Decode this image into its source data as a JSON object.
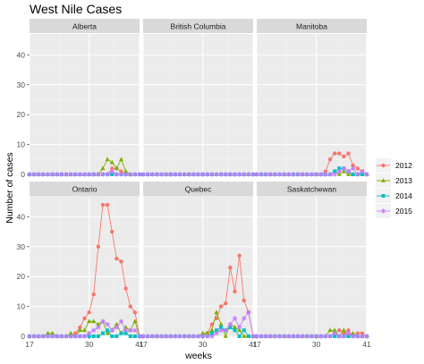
{
  "chart_data": {
    "type": "line",
    "title": "West Nile Cases",
    "xlabel": "weeks",
    "ylabel": "Number of cases",
    "xlim": [
      17,
      41
    ],
    "ylim": [
      0,
      44
    ],
    "x_ticks": [
      17,
      30,
      41
    ],
    "y_ticks": [
      0,
      10,
      20,
      30,
      40
    ],
    "legend": {
      "position": "right",
      "title": ""
    },
    "facet_order": [
      "Alberta",
      "British Columbia",
      "Manitoba",
      "Ontario",
      "Quebec",
      "Saskatchewan"
    ],
    "series_styles": [
      {
        "name": "2012",
        "color": "#F8766D",
        "marker": "circle"
      },
      {
        "name": "2013",
        "color": "#7CAE00",
        "marker": "triangle"
      },
      {
        "name": "2014",
        "color": "#00BFC4",
        "marker": "square"
      },
      {
        "name": "2015",
        "color": "#C77CFF",
        "marker": "star"
      }
    ],
    "weeks": [
      17,
      18,
      19,
      20,
      21,
      22,
      23,
      24,
      25,
      26,
      27,
      28,
      29,
      30,
      31,
      32,
      33,
      34,
      35,
      36,
      37,
      38,
      39,
      40,
      41
    ],
    "facets": [
      {
        "name": "Alberta",
        "series": {
          "2012": [
            0,
            0,
            0,
            0,
            0,
            0,
            0,
            0,
            0,
            0,
            0,
            0,
            0,
            0,
            0,
            0,
            0,
            0,
            2,
            2,
            1,
            0,
            0,
            0,
            0
          ],
          "2013": [
            0,
            0,
            0,
            0,
            0,
            0,
            0,
            0,
            0,
            0,
            0,
            0,
            0,
            0,
            0,
            0,
            2,
            5,
            4,
            2,
            5,
            1,
            0,
            0,
            0
          ],
          "2014": [
            0,
            0,
            0,
            0,
            0,
            0,
            0,
            0,
            0,
            0,
            0,
            0,
            0,
            0,
            0,
            0,
            0,
            0,
            0,
            0,
            0,
            0,
            0,
            0,
            0
          ],
          "2015": [
            0,
            0,
            0,
            0,
            0,
            0,
            0,
            0,
            0,
            0,
            0,
            0,
            0,
            0,
            0,
            0,
            0,
            0,
            1,
            0,
            0,
            0,
            0,
            0,
            0
          ]
        }
      },
      {
        "name": "British Columbia",
        "series": {
          "2012": [
            0,
            0,
            0,
            0,
            0,
            0,
            0,
            0,
            0,
            0,
            0,
            0,
            0,
            0,
            0,
            0,
            0,
            0,
            0,
            0,
            0,
            0,
            0,
            0,
            0
          ],
          "2013": [
            0,
            0,
            0,
            0,
            0,
            0,
            0,
            0,
            0,
            0,
            0,
            0,
            0,
            0,
            0,
            0,
            0,
            0,
            0,
            0,
            0,
            0,
            0,
            0,
            0
          ],
          "2014": [
            0,
            0,
            0,
            0,
            0,
            0,
            0,
            0,
            0,
            0,
            0,
            0,
            0,
            0,
            0,
            0,
            0,
            0,
            0,
            0,
            0,
            0,
            0,
            0,
            0
          ],
          "2015": [
            0,
            0,
            0,
            0,
            0,
            0,
            0,
            0,
            0,
            0,
            0,
            0,
            0,
            0,
            0,
            0,
            0,
            0,
            0,
            0,
            0,
            0,
            0,
            0,
            0
          ]
        }
      },
      {
        "name": "Manitoba",
        "series": {
          "2012": [
            0,
            0,
            0,
            0,
            0,
            0,
            0,
            0,
            0,
            0,
            0,
            0,
            0,
            0,
            0,
            1,
            5,
            7,
            7,
            6,
            7,
            3,
            2,
            1,
            0
          ],
          "2013": [
            0,
            0,
            0,
            0,
            0,
            0,
            0,
            0,
            0,
            0,
            0,
            0,
            0,
            0,
            0,
            0,
            0,
            1,
            0,
            1,
            0,
            0,
            0,
            0,
            0
          ],
          "2014": [
            0,
            0,
            0,
            0,
            0,
            0,
            0,
            0,
            0,
            0,
            0,
            0,
            0,
            0,
            0,
            0,
            0,
            1,
            2,
            2,
            1,
            0,
            0,
            0,
            0
          ],
          "2015": [
            0,
            0,
            0,
            0,
            0,
            0,
            0,
            0,
            0,
            0,
            0,
            0,
            0,
            0,
            0,
            0,
            0,
            0,
            1,
            2,
            1,
            2,
            0,
            1,
            0
          ]
        }
      },
      {
        "name": "Ontario",
        "series": {
          "2012": [
            0,
            0,
            0,
            0,
            0,
            0,
            0,
            0,
            0,
            0,
            1,
            3,
            6,
            8,
            14,
            30,
            44,
            44,
            35,
            26,
            25,
            16,
            10,
            8,
            0
          ],
          "2013": [
            0,
            0,
            0,
            0,
            1,
            1,
            0,
            0,
            0,
            1,
            0,
            2,
            2,
            5,
            5,
            4,
            5,
            1,
            2,
            4,
            1,
            3,
            2,
            5,
            0
          ],
          "2014": [
            0,
            0,
            0,
            0,
            0,
            0,
            0,
            0,
            0,
            0,
            0,
            0,
            0,
            0,
            0,
            0,
            1,
            2,
            0,
            0,
            1,
            1,
            0,
            0,
            0
          ],
          "2015": [
            0,
            0,
            0,
            0,
            0,
            0,
            0,
            0,
            0,
            0,
            0,
            0,
            0,
            1,
            2,
            3,
            5,
            4,
            2,
            3,
            5,
            2,
            2,
            2,
            0
          ]
        }
      },
      {
        "name": "Quebec",
        "series": {
          "2012": [
            0,
            0,
            0,
            0,
            0,
            0,
            0,
            0,
            0,
            0,
            0,
            0,
            0,
            0,
            1,
            4,
            6,
            10,
            11,
            23,
            15,
            27,
            12,
            8,
            0
          ],
          "2013": [
            0,
            0,
            0,
            0,
            0,
            0,
            0,
            0,
            0,
            0,
            0,
            0,
            0,
            1,
            1,
            2,
            8,
            4,
            0,
            4,
            3,
            2,
            0,
            0,
            0
          ],
          "2014": [
            0,
            0,
            0,
            0,
            0,
            0,
            0,
            0,
            0,
            0,
            0,
            0,
            0,
            0,
            0,
            1,
            2,
            3,
            2,
            3,
            2,
            0,
            2,
            0,
            0
          ],
          "2015": [
            0,
            0,
            0,
            0,
            0,
            0,
            0,
            0,
            0,
            0,
            0,
            0,
            0,
            0,
            0,
            0,
            1,
            2,
            2,
            4,
            6,
            3,
            6,
            8,
            0
          ]
        }
      },
      {
        "name": "Saskatchewan",
        "series": {
          "2012": [
            0,
            0,
            0,
            0,
            0,
            0,
            0,
            0,
            0,
            0,
            0,
            0,
            0,
            0,
            0,
            0,
            0,
            1,
            2,
            1,
            2,
            0,
            1,
            1,
            0
          ],
          "2013": [
            0,
            0,
            0,
            0,
            0,
            0,
            0,
            0,
            0,
            0,
            0,
            0,
            0,
            0,
            0,
            0,
            2,
            2,
            0,
            2,
            0,
            1,
            0,
            0,
            0
          ],
          "2014": [
            0,
            0,
            0,
            0,
            0,
            0,
            0,
            0,
            0,
            0,
            0,
            0,
            0,
            0,
            0,
            0,
            0,
            0,
            0,
            0,
            0,
            0,
            0,
            0,
            0
          ],
          "2015": [
            0,
            0,
            0,
            0,
            0,
            0,
            0,
            0,
            0,
            0,
            0,
            0,
            0,
            0,
            0,
            0,
            0,
            1,
            0,
            0,
            1,
            0,
            0,
            0,
            0
          ]
        }
      }
    ]
  }
}
